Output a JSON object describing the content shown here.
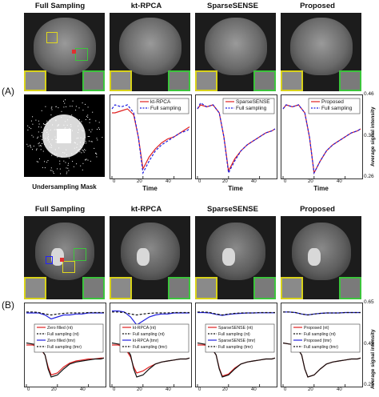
{
  "panel_labels": {
    "a": "(A)",
    "b": "(B)"
  },
  "top": {
    "titles": [
      "Full Sampling",
      "kt-RPCA",
      "SparseSENSE",
      "Proposed"
    ],
    "mask_caption": "Undersampling Mask",
    "ylabel": "Average signal intensity",
    "yticks": [
      "0.46",
      "0.36",
      "0.26"
    ],
    "xticks": [
      "0",
      "20",
      "40"
    ],
    "xlabel": "Time",
    "legends": [
      [
        {
          "label": "kt-RPCA",
          "color": "#e02020",
          "dash": false
        },
        {
          "label": "Full sampling",
          "color": "#2020e0",
          "dash": true
        }
      ],
      [
        {
          "label": "SparseSENSE",
          "color": "#e02020",
          "dash": false
        },
        {
          "label": "Full sampling",
          "color": "#2020e0",
          "dash": true
        }
      ],
      [
        {
          "label": "Proposed",
          "color": "#e02020",
          "dash": false
        },
        {
          "label": "Full sampling",
          "color": "#2020e0",
          "dash": true
        }
      ]
    ]
  },
  "bottom": {
    "titles": [
      "Full Sampling",
      "kt-RPCA",
      "SparseSENSE",
      "Proposed"
    ],
    "ylabel": "Average signal intensity",
    "yticks": [
      "0.65",
      "0.45",
      "0.25"
    ],
    "xticks": [
      "0",
      "20",
      "40"
    ],
    "xlabel": "Time",
    "legends": [
      [
        {
          "label": "Zero filled (nt)",
          "color": "#e02020",
          "dash": false
        },
        {
          "label": "Full sampling (nt)",
          "color": "#111111",
          "dash": true
        },
        {
          "label": "Zero filled (tmr)",
          "color": "#2020e0",
          "dash": false
        },
        {
          "label": "Full sampling (tmr)",
          "color": "#111111",
          "dash": true
        }
      ],
      [
        {
          "label": "kt-RPCA (nt)",
          "color": "#e02020",
          "dash": false
        },
        {
          "label": "Full sampling (nt)",
          "color": "#111111",
          "dash": true
        },
        {
          "label": "kt-RPCA (tmr)",
          "color": "#2020e0",
          "dash": false
        },
        {
          "label": "Full sampling (tmr)",
          "color": "#111111",
          "dash": true
        }
      ],
      [
        {
          "label": "SparseSENSE (nt)",
          "color": "#e02020",
          "dash": false
        },
        {
          "label": "Full sampling (nt)",
          "color": "#111111",
          "dash": true
        },
        {
          "label": "SparseSENSE (tmr)",
          "color": "#2020e0",
          "dash": false
        },
        {
          "label": "Full sampling (tmr)",
          "color": "#111111",
          "dash": true
        }
      ],
      [
        {
          "label": "Proposed (nt)",
          "color": "#e02020",
          "dash": false
        },
        {
          "label": "Full sampling (nt)",
          "color": "#111111",
          "dash": true
        },
        {
          "label": "Proposed (tmr)",
          "color": "#2020e0",
          "dash": false
        },
        {
          "label": "Full sampling (tmr)",
          "color": "#111111",
          "dash": true
        }
      ]
    ]
  },
  "chart_data": [
    {
      "type": "line",
      "panel": "A",
      "title": "kt-RPCA",
      "xlabel": "Time",
      "ylabel": "Average signal intensity",
      "xlim": [
        0,
        50
      ],
      "ylim": [
        0.26,
        0.46
      ],
      "series": [
        {
          "name": "kt-RPCA",
          "x": [
            0,
            2,
            6,
            10,
            14,
            17,
            20,
            24,
            28,
            32,
            36,
            40,
            44,
            48,
            50
          ],
          "y": [
            0.42,
            0.42,
            0.425,
            0.43,
            0.415,
            0.36,
            0.28,
            0.31,
            0.33,
            0.345,
            0.355,
            0.36,
            0.37,
            0.38,
            0.385
          ]
        },
        {
          "name": "Full sampling",
          "x": [
            0,
            2,
            6,
            10,
            14,
            17,
            20,
            24,
            28,
            32,
            36,
            40,
            44,
            48,
            50
          ],
          "y": [
            0.43,
            0.44,
            0.435,
            0.44,
            0.42,
            0.36,
            0.27,
            0.3,
            0.325,
            0.34,
            0.35,
            0.36,
            0.37,
            0.375,
            0.38
          ]
        }
      ]
    },
    {
      "type": "line",
      "panel": "A",
      "title": "SparseSENSE",
      "xlabel": "Time",
      "ylabel": "Average signal intensity",
      "xlim": [
        0,
        50
      ],
      "ylim": [
        0.26,
        0.46
      ],
      "series": [
        {
          "name": "SparseSENSE",
          "x": [
            0,
            2,
            6,
            10,
            14,
            17,
            20,
            24,
            28,
            32,
            36,
            40,
            44,
            48,
            50
          ],
          "y": [
            0.43,
            0.44,
            0.435,
            0.44,
            0.42,
            0.36,
            0.275,
            0.305,
            0.325,
            0.34,
            0.35,
            0.36,
            0.37,
            0.375,
            0.38
          ]
        },
        {
          "name": "Full sampling",
          "x": [
            0,
            2,
            6,
            10,
            14,
            17,
            20,
            24,
            28,
            32,
            36,
            40,
            44,
            48,
            50
          ],
          "y": [
            0.43,
            0.445,
            0.435,
            0.44,
            0.42,
            0.36,
            0.27,
            0.3,
            0.325,
            0.34,
            0.35,
            0.36,
            0.37,
            0.375,
            0.38
          ]
        }
      ]
    },
    {
      "type": "line",
      "panel": "A",
      "title": "Proposed",
      "xlabel": "Time",
      "ylabel": "Average signal intensity",
      "xlim": [
        0,
        50
      ],
      "ylim": [
        0.26,
        0.46
      ],
      "series": [
        {
          "name": "Proposed",
          "x": [
            0,
            2,
            6,
            10,
            14,
            17,
            20,
            24,
            28,
            32,
            36,
            40,
            44,
            48,
            50
          ],
          "y": [
            0.43,
            0.44,
            0.435,
            0.44,
            0.42,
            0.36,
            0.27,
            0.3,
            0.325,
            0.34,
            0.35,
            0.36,
            0.37,
            0.375,
            0.38
          ]
        },
        {
          "name": "Full sampling",
          "x": [
            0,
            2,
            6,
            10,
            14,
            17,
            20,
            24,
            28,
            32,
            36,
            40,
            44,
            48,
            50
          ],
          "y": [
            0.43,
            0.44,
            0.435,
            0.44,
            0.42,
            0.36,
            0.27,
            0.3,
            0.325,
            0.34,
            0.35,
            0.36,
            0.37,
            0.375,
            0.38
          ]
        }
      ]
    },
    {
      "type": "line",
      "panel": "B",
      "title": "Full Sampling",
      "xlabel": "Time",
      "ylabel": "Average signal intensity",
      "xlim": [
        0,
        50
      ],
      "ylim": [
        0.25,
        0.65
      ],
      "series": [
        {
          "name": "Zero filled (nt)",
          "x": [
            0,
            4,
            8,
            12,
            14,
            16,
            20,
            24,
            28,
            32,
            36,
            40,
            44,
            48,
            50
          ],
          "y": [
            0.45,
            0.45,
            0.44,
            0.4,
            0.34,
            0.3,
            0.31,
            0.34,
            0.36,
            0.37,
            0.375,
            0.38,
            0.38,
            0.385,
            0.385
          ]
        },
        {
          "name": "Full sampling (nt)",
          "x": [
            0,
            4,
            8,
            12,
            14,
            16,
            20,
            24,
            28,
            32,
            36,
            40,
            44,
            48,
            50
          ],
          "y": [
            0.46,
            0.455,
            0.45,
            0.4,
            0.33,
            0.29,
            0.3,
            0.33,
            0.355,
            0.365,
            0.37,
            0.375,
            0.38,
            0.38,
            0.385
          ]
        },
        {
          "name": "Zero filled (tmr)",
          "x": [
            0,
            4,
            8,
            12,
            16,
            20,
            24,
            28,
            32,
            36,
            40,
            44,
            48,
            50
          ],
          "y": [
            0.61,
            0.61,
            0.61,
            0.6,
            0.58,
            0.59,
            0.6,
            0.6,
            0.605,
            0.605,
            0.61,
            0.61,
            0.61,
            0.61
          ]
        },
        {
          "name": "Full sampling (tmr)",
          "x": [
            0,
            4,
            8,
            12,
            16,
            20,
            24,
            28,
            32,
            36,
            40,
            44,
            48,
            50
          ],
          "y": [
            0.615,
            0.615,
            0.612,
            0.605,
            0.6,
            0.605,
            0.608,
            0.61,
            0.61,
            0.61,
            0.612,
            0.612,
            0.612,
            0.612
          ]
        }
      ]
    },
    {
      "type": "line",
      "panel": "B",
      "title": "kt-RPCA",
      "xlabel": "Time",
      "ylabel": "Average signal intensity",
      "xlim": [
        0,
        50
      ],
      "ylim": [
        0.25,
        0.65
      ],
      "series": [
        {
          "name": "kt-RPCA (nt)",
          "x": [
            0,
            4,
            8,
            12,
            14,
            16,
            20,
            24,
            28,
            32,
            36,
            40,
            44,
            48,
            50
          ],
          "y": [
            0.45,
            0.45,
            0.44,
            0.39,
            0.34,
            0.31,
            0.32,
            0.34,
            0.355,
            0.365,
            0.37,
            0.375,
            0.38,
            0.38,
            0.385
          ]
        },
        {
          "name": "Full sampling (nt)",
          "x": [
            0,
            4,
            8,
            12,
            14,
            16,
            20,
            24,
            28,
            32,
            36,
            40,
            44,
            48,
            50
          ],
          "y": [
            0.46,
            0.455,
            0.45,
            0.4,
            0.33,
            0.29,
            0.3,
            0.33,
            0.355,
            0.365,
            0.37,
            0.375,
            0.38,
            0.38,
            0.385
          ]
        },
        {
          "name": "kt-RPCA (tmr)",
          "x": [
            0,
            4,
            8,
            12,
            16,
            20,
            24,
            28,
            32,
            36,
            40,
            44,
            48,
            50
          ],
          "y": [
            0.62,
            0.62,
            0.615,
            0.59,
            0.55,
            0.57,
            0.59,
            0.6,
            0.605,
            0.605,
            0.61,
            0.61,
            0.61,
            0.61
          ]
        },
        {
          "name": "Full sampling (tmr)",
          "x": [
            0,
            4,
            8,
            12,
            16,
            20,
            24,
            28,
            32,
            36,
            40,
            44,
            48,
            50
          ],
          "y": [
            0.615,
            0.615,
            0.612,
            0.605,
            0.6,
            0.605,
            0.608,
            0.61,
            0.61,
            0.61,
            0.612,
            0.612,
            0.612,
            0.612
          ]
        }
      ]
    },
    {
      "type": "line",
      "panel": "B",
      "title": "SparseSENSE",
      "xlabel": "Time",
      "ylabel": "Average signal intensity",
      "xlim": [
        0,
        50
      ],
      "ylim": [
        0.25,
        0.65
      ],
      "series": [
        {
          "name": "SparseSENSE (nt)",
          "x": [
            0,
            4,
            8,
            12,
            14,
            16,
            20,
            24,
            28,
            32,
            36,
            40,
            44,
            48,
            50
          ],
          "y": [
            0.45,
            0.45,
            0.445,
            0.4,
            0.335,
            0.295,
            0.305,
            0.335,
            0.355,
            0.365,
            0.37,
            0.375,
            0.38,
            0.38,
            0.385
          ]
        },
        {
          "name": "Full sampling (nt)",
          "x": [
            0,
            4,
            8,
            12,
            14,
            16,
            20,
            24,
            28,
            32,
            36,
            40,
            44,
            48,
            50
          ],
          "y": [
            0.46,
            0.455,
            0.45,
            0.4,
            0.33,
            0.29,
            0.3,
            0.33,
            0.355,
            0.365,
            0.37,
            0.375,
            0.38,
            0.38,
            0.385
          ]
        },
        {
          "name": "SparseSENSE (tmr)",
          "x": [
            0,
            4,
            8,
            12,
            16,
            20,
            24,
            28,
            32,
            36,
            40,
            44,
            48,
            50
          ],
          "y": [
            0.612,
            0.612,
            0.61,
            0.603,
            0.598,
            0.603,
            0.606,
            0.608,
            0.61,
            0.61,
            0.611,
            0.611,
            0.611,
            0.611
          ]
        },
        {
          "name": "Full sampling (tmr)",
          "x": [
            0,
            4,
            8,
            12,
            16,
            20,
            24,
            28,
            32,
            36,
            40,
            44,
            48,
            50
          ],
          "y": [
            0.615,
            0.615,
            0.612,
            0.605,
            0.6,
            0.605,
            0.608,
            0.61,
            0.61,
            0.61,
            0.612,
            0.612,
            0.612,
            0.612
          ]
        }
      ]
    },
    {
      "type": "line",
      "panel": "B",
      "title": "Proposed",
      "xlabel": "Time",
      "ylabel": "Average signal intensity",
      "xlim": [
        0,
        50
      ],
      "ylim": [
        0.25,
        0.65
      ],
      "series": [
        {
          "name": "Proposed (nt)",
          "x": [
            0,
            4,
            8,
            12,
            14,
            16,
            20,
            24,
            28,
            32,
            36,
            40,
            44,
            48,
            50
          ],
          "y": [
            0.46,
            0.455,
            0.45,
            0.4,
            0.33,
            0.29,
            0.3,
            0.33,
            0.355,
            0.365,
            0.37,
            0.375,
            0.38,
            0.38,
            0.385
          ]
        },
        {
          "name": "Full sampling (nt)",
          "x": [
            0,
            4,
            8,
            12,
            14,
            16,
            20,
            24,
            28,
            32,
            36,
            40,
            44,
            48,
            50
          ],
          "y": [
            0.46,
            0.455,
            0.45,
            0.4,
            0.33,
            0.29,
            0.3,
            0.33,
            0.355,
            0.365,
            0.37,
            0.375,
            0.38,
            0.38,
            0.385
          ]
        },
        {
          "name": "Proposed (tmr)",
          "x": [
            0,
            4,
            8,
            12,
            16,
            20,
            24,
            28,
            32,
            36,
            40,
            44,
            48,
            50
          ],
          "y": [
            0.615,
            0.615,
            0.612,
            0.605,
            0.6,
            0.605,
            0.608,
            0.61,
            0.61,
            0.61,
            0.612,
            0.612,
            0.612,
            0.612
          ]
        },
        {
          "name": "Full sampling (tmr)",
          "x": [
            0,
            4,
            8,
            12,
            16,
            20,
            24,
            28,
            32,
            36,
            40,
            44,
            48,
            50
          ],
          "y": [
            0.615,
            0.615,
            0.612,
            0.605,
            0.6,
            0.605,
            0.608,
            0.61,
            0.61,
            0.61,
            0.612,
            0.612,
            0.612,
            0.612
          ]
        }
      ]
    }
  ]
}
